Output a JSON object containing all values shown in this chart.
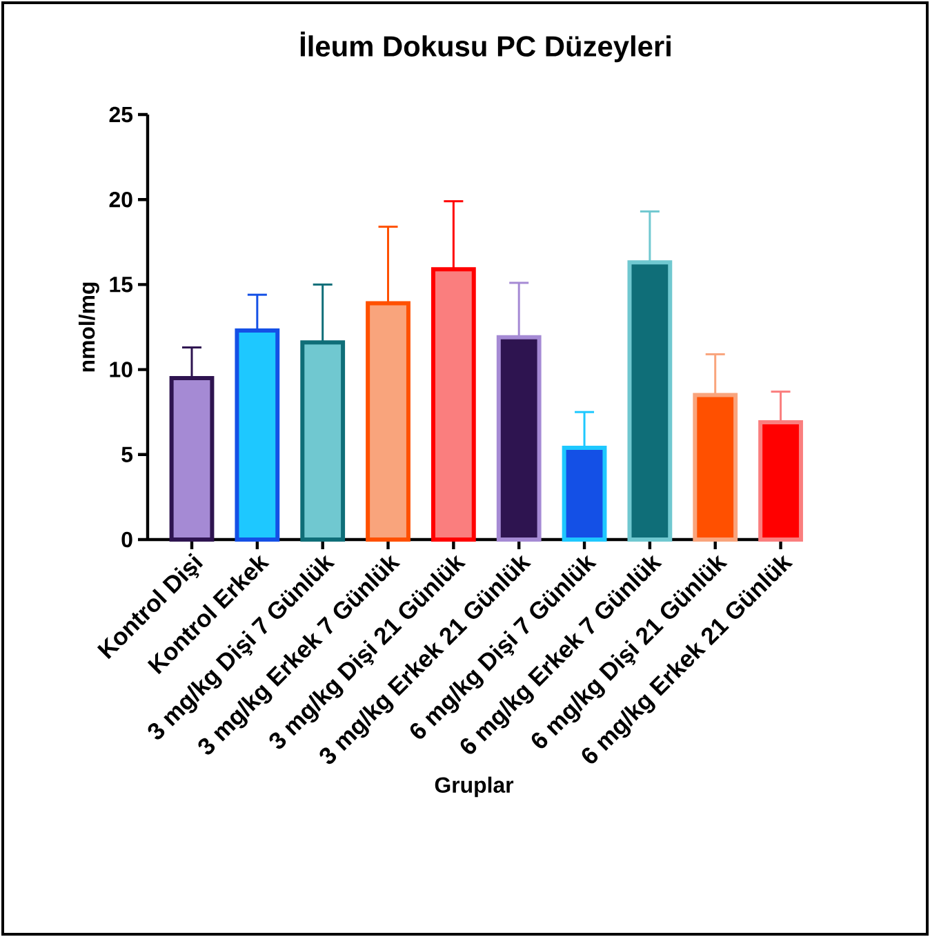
{
  "chart_data": {
    "type": "bar",
    "title": "İleum Dokusu PC Düzeyleri",
    "xlabel": "Gruplar",
    "ylabel": "nmol/mg",
    "categories": [
      "Kontrol Dişi",
      "Kontrol Erkek",
      "3 mg/kg Dişi 7 Günlük",
      "3 mg/kg Erkek 7 Günlük",
      "3 mg/kg Dişi 21 Günlük",
      "3 mg/kg Erkek 21 Günlük",
      "6 mg/kg Dişi 7 Günlük",
      "6 mg/kg Erkek 7 Günlük",
      "6 mg/kg Dişi 21 Günlük",
      "6 mg/kg Erkek 21 Günlük"
    ],
    "values": [
      9.5,
      12.3,
      11.6,
      13.9,
      15.9,
      11.9,
      5.4,
      16.3,
      8.5,
      6.9
    ],
    "errors": [
      [
        9.5,
        11.3
      ],
      [
        12.3,
        14.4
      ],
      [
        11.6,
        15.0
      ],
      [
        13.9,
        18.4
      ],
      [
        15.9,
        19.9
      ],
      [
        11.9,
        15.1
      ],
      [
        5.4,
        7.5
      ],
      [
        16.3,
        19.3
      ],
      [
        8.5,
        10.9
      ],
      [
        6.9,
        8.7
      ]
    ],
    "colors": [
      "#a58ad4",
      "#1ec8ff",
      "#70c8d0",
      "#f9a47c",
      "#fa7e7e",
      "#2e1450",
      "#1450e6",
      "#0f6e78",
      "#ff5000",
      "#ff0000"
    ],
    "ylim": [
      0,
      25
    ],
    "yticks": [
      0,
      5,
      10,
      15,
      20,
      25
    ]
  }
}
